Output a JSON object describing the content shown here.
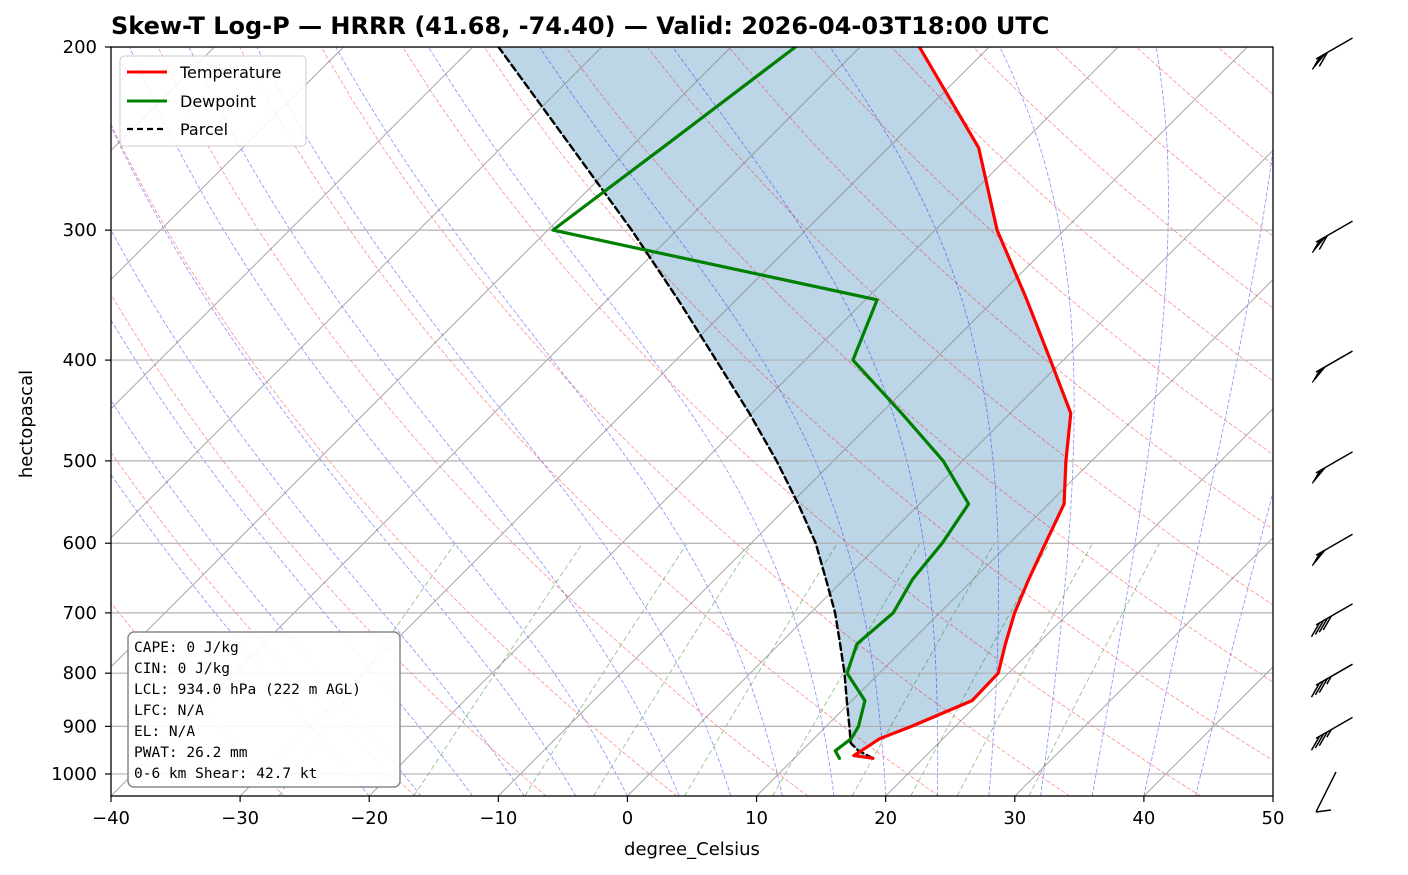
{
  "chart_data": {
    "type": "line",
    "title": "Skew-T Log-P — HRRR (41.68, -74.40) — Valid: 2026-04-03T18:00 UTC",
    "xlabel": "degree_Celsius",
    "ylabel": "hectopascal",
    "xlim": [
      -40,
      50
    ],
    "ylim": [
      1050,
      200
    ],
    "y_scale": "log",
    "grid": true,
    "x_ticks": [
      -40,
      -30,
      -20,
      -10,
      0,
      10,
      20,
      30,
      40,
      50
    ],
    "y_ticks": [
      1000,
      900,
      800,
      700,
      600,
      500,
      400,
      300,
      200
    ],
    "x_tick_labels": [
      "−40",
      "−30",
      "−20",
      "−10",
      "0",
      "10",
      "20",
      "30",
      "40",
      "50"
    ],
    "y_tick_labels": [
      "1000",
      "900",
      "800",
      "700",
      "600",
      "500",
      "400",
      "300",
      "200"
    ],
    "legend": {
      "placement": "upper-left",
      "entries": [
        {
          "label": "Temperature",
          "color": "#ff0000",
          "style": "solid"
        },
        {
          "label": "Dewpoint",
          "color": "#008000",
          "style": "solid"
        },
        {
          "label": "Parcel",
          "color": "#000000",
          "style": "dashed"
        }
      ]
    },
    "series": [
      {
        "name": "Temperature",
        "color": "#ff0000",
        "points": [
          {
            "p": 966,
            "t": 16.1
          },
          {
            "p": 960,
            "t": 14.4
          },
          {
            "p": 950,
            "t": 14.6
          },
          {
            "p": 925,
            "t": 15.1
          },
          {
            "p": 900,
            "t": 16.6
          },
          {
            "p": 850,
            "t": 19.3
          },
          {
            "p": 800,
            "t": 19.2
          },
          {
            "p": 750,
            "t": 17.5
          },
          {
            "p": 700,
            "t": 15.8
          },
          {
            "p": 650,
            "t": 14.3
          },
          {
            "p": 600,
            "t": 12.8
          },
          {
            "p": 550,
            "t": 11.2
          },
          {
            "p": 500,
            "t": 8.0
          },
          {
            "p": 450,
            "t": 4.7
          },
          {
            "p": 400,
            "t": -1.0
          },
          {
            "p": 350,
            "t": -7.5
          },
          {
            "p": 300,
            "t": -15.2
          },
          {
            "p": 250,
            "t": -23.0
          },
          {
            "p": 200,
            "t": -35.4
          }
        ]
      },
      {
        "name": "Dewpoint",
        "color": "#008000",
        "points": [
          {
            "p": 966,
            "t": 13.5
          },
          {
            "p": 950,
            "t": 12.6
          },
          {
            "p": 925,
            "t": 12.9
          },
          {
            "p": 900,
            "t": 12.5
          },
          {
            "p": 850,
            "t": 11.0
          },
          {
            "p": 800,
            "t": 7.5
          },
          {
            "p": 750,
            "t": 6.0
          },
          {
            "p": 700,
            "t": 6.4
          },
          {
            "p": 650,
            "t": 5.3
          },
          {
            "p": 600,
            "t": 4.8
          },
          {
            "p": 550,
            "t": 3.8
          },
          {
            "p": 500,
            "t": -1.5
          },
          {
            "p": 450,
            "t": -8.4
          },
          {
            "p": 400,
            "t": -16.3
          },
          {
            "p": 350,
            "t": -19.1
          },
          {
            "p": 300,
            "t": -49.6
          },
          {
            "p": 250,
            "t": -47.5
          },
          {
            "p": 200,
            "t": -45.0
          }
        ]
      },
      {
        "name": "Parcel",
        "color": "#000000",
        "style": "dashed",
        "points": [
          {
            "p": 966,
            "t": 16.1
          },
          {
            "p": 950,
            "t": 14.4
          },
          {
            "p": 934,
            "t": 13.2
          },
          {
            "p": 900,
            "t": 11.8
          },
          {
            "p": 850,
            "t": 9.6
          },
          {
            "p": 800,
            "t": 7.3
          },
          {
            "p": 750,
            "t": 4.7
          },
          {
            "p": 700,
            "t": 1.9
          },
          {
            "p": 650,
            "t": -1.4
          },
          {
            "p": 600,
            "t": -5.0
          },
          {
            "p": 550,
            "t": -9.4
          },
          {
            "p": 500,
            "t": -14.4
          },
          {
            "p": 450,
            "t": -20.2
          },
          {
            "p": 400,
            "t": -26.9
          },
          {
            "p": 350,
            "t": -34.5
          },
          {
            "p": 300,
            "t": -43.5
          },
          {
            "p": 250,
            "t": -54.5
          },
          {
            "p": 200,
            "t": -68.0
          }
        ]
      }
    ],
    "shading": {
      "between": [
        "Temperature",
        "Parcel"
      ],
      "color": "#b8d3e6"
    },
    "wind_barbs": [
      {
        "p": 200,
        "speed_kt": 60
      },
      {
        "p": 300,
        "speed_kt": 60
      },
      {
        "p": 400,
        "speed_kt": 50
      },
      {
        "p": 500,
        "speed_kt": 50
      },
      {
        "p": 600,
        "speed_kt": 50
      },
      {
        "p": 700,
        "speed_kt": 40
      },
      {
        "p": 800,
        "speed_kt": 35
      },
      {
        "p": 900,
        "speed_kt": 35
      },
      {
        "p": 1000,
        "speed_kt": 5
      }
    ],
    "stats": {
      "lines": [
        "CAPE: 0 J/kg",
        "CIN: 0 J/kg",
        "LCL: 934.0 hPa (222 m AGL)",
        "LFC: N/A",
        "EL: N/A",
        "PWAT: 26.2 mm",
        "0-6 km Shear: 42.7 kt"
      ]
    },
    "colors": {
      "dry_adiabats": "#ff0000",
      "moist_adiabats": "#0000ff",
      "mixing_ratio": "#008000",
      "isotherms": "#888888",
      "gridlines": "#b0b0b0"
    }
  }
}
